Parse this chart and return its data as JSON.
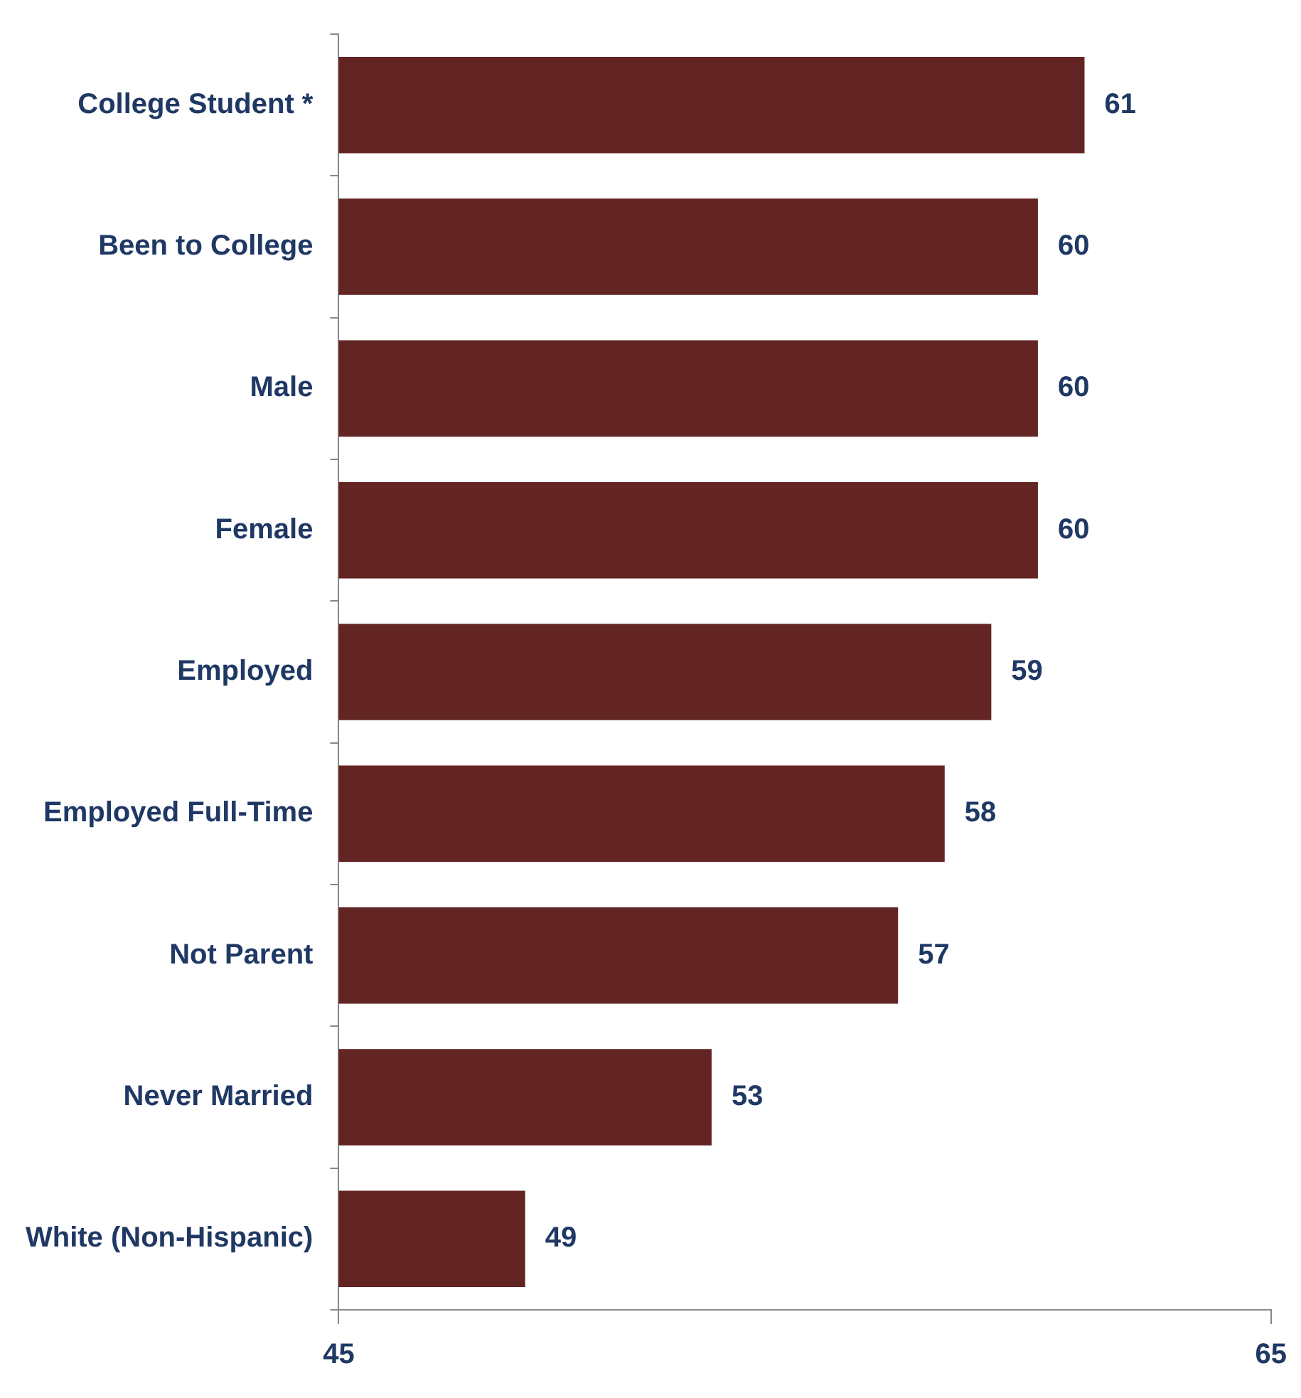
{
  "chart_data": {
    "type": "bar",
    "orientation": "horizontal",
    "categories": [
      "College Student *",
      "Been to College",
      "Male",
      "Female",
      "Employed",
      "Employed Full-Time",
      "Not Parent",
      "Never Married",
      "White (Non-Hispanic)"
    ],
    "values": [
      61,
      60,
      60,
      60,
      59,
      58,
      57,
      53,
      49
    ],
    "color": "#632523",
    "xlim": [
      45,
      65
    ],
    "xticks": [
      45,
      65
    ],
    "data_labels": true,
    "grid": false,
    "legend": false
  }
}
